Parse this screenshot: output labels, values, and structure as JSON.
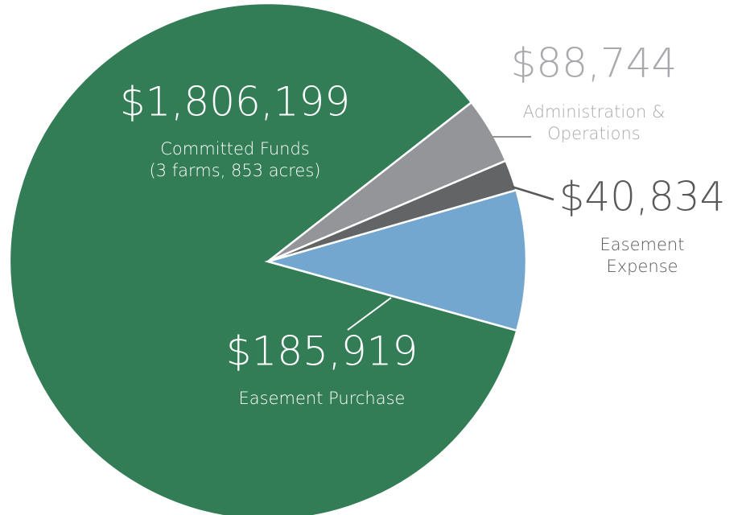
{
  "chart_data": {
    "type": "pie",
    "categories": [
      [
        "Committed Funds",
        "(3 farms, 853 acres)"
      ],
      [
        "Administration &",
        "Operations"
      ],
      [
        "Easement",
        "Expense"
      ],
      [
        "Easement Purchase"
      ]
    ],
    "values": [
      1806199,
      88744,
      40834,
      185919
    ],
    "value_labels": [
      "$1,806,199",
      "$88,744",
      "$40,834",
      "$185,919"
    ],
    "colors": [
      "#337d56",
      "#939598",
      "#636466",
      "#74a7d0"
    ]
  }
}
